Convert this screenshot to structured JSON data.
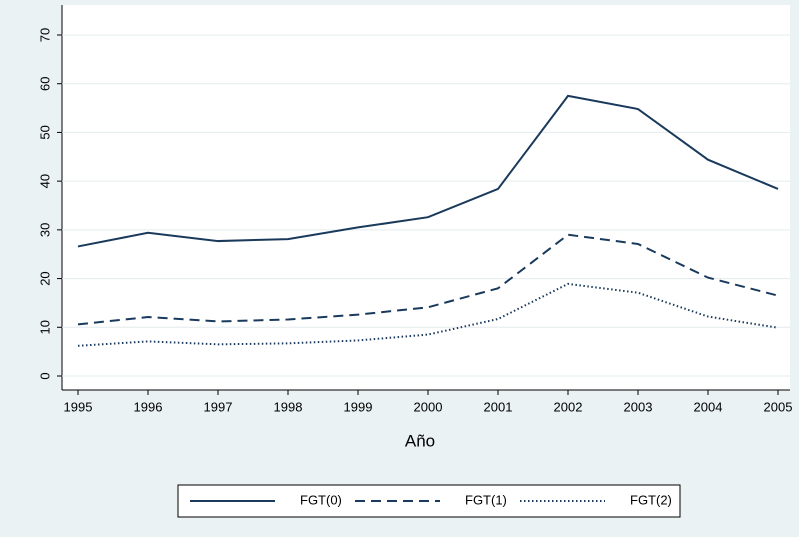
{
  "chart_data": {
    "type": "line",
    "x": [
      1995,
      1996,
      1997,
      1998,
      1999,
      2000,
      2001,
      2002,
      2003,
      2004,
      2005
    ],
    "x_label": "Año",
    "series": [
      {
        "name": "FGT(0)",
        "color": "#1a3a5c",
        "dash": "solid",
        "values": [
          26.6,
          29.4,
          27.7,
          28.1,
          30.5,
          32.6,
          38.4,
          57.5,
          54.8,
          44.4,
          38.4
        ]
      },
      {
        "name": "FGT(1)",
        "color": "#1a3a5c",
        "dash": "dash",
        "values": [
          10.6,
          12.1,
          11.2,
          11.6,
          12.6,
          14.1,
          18.0,
          29.0,
          27.1,
          20.2,
          16.5
        ]
      },
      {
        "name": "FGT(2)",
        "color": "#1a3a5c",
        "dash": "dot",
        "values": [
          6.2,
          7.1,
          6.5,
          6.7,
          7.3,
          8.5,
          11.7,
          18.9,
          17.1,
          12.2,
          9.9
        ]
      }
    ],
    "xlim": [
      1995,
      2005
    ],
    "xticks": [
      1995,
      1996,
      1997,
      1998,
      1999,
      2000,
      2001,
      2002,
      2003,
      2004,
      2005
    ],
    "ylim": [
      0,
      70
    ],
    "yticks": [
      0,
      10,
      20,
      30,
      40,
      50,
      60,
      70
    ],
    "grid": true,
    "legend": "bottom"
  }
}
